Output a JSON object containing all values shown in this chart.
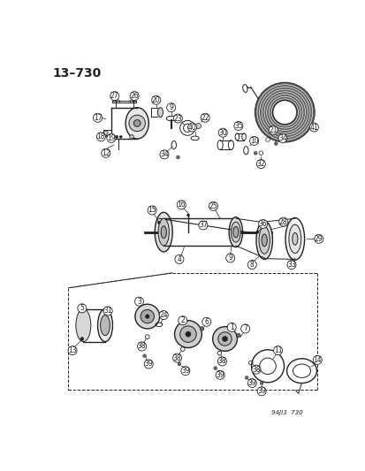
{
  "title": "13–730",
  "footer": "94JI3  730",
  "bg_color": "#ffffff",
  "title_fontsize": 10,
  "fig_width": 4.14,
  "fig_height": 5.33,
  "dpi": 100
}
